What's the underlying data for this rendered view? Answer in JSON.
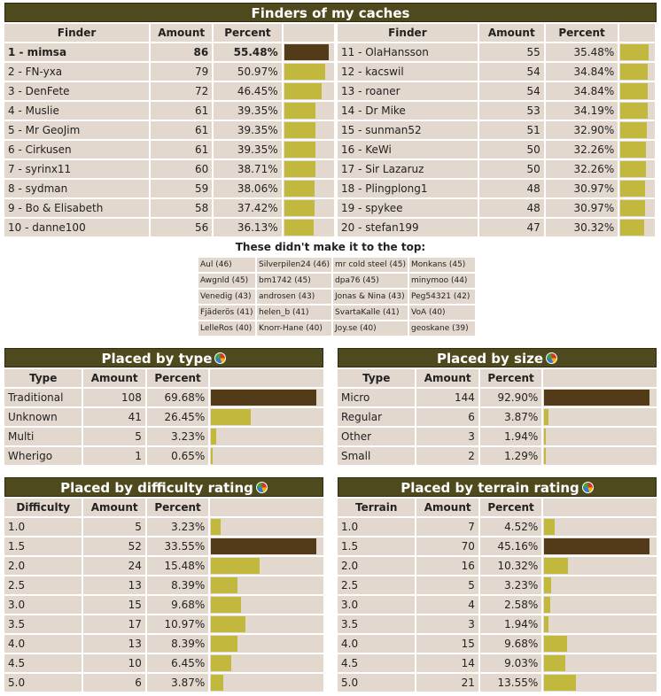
{
  "colors": {
    "header_bg": "#4f4a1d",
    "cell_bg": "#e2d8cd",
    "bar_max": "#533b1a",
    "bar": "#c3b83e"
  },
  "finders": {
    "title": "Finders of my caches",
    "headers": [
      "Finder",
      "Amount",
      "Percent"
    ],
    "left": [
      {
        "name": "1 - mimsa",
        "amount": "86",
        "percent": "55.48%",
        "frac": 1.0
      },
      {
        "name": "2 - FN-yxa",
        "amount": "79",
        "percent": "50.97%",
        "frac": 0.9187
      },
      {
        "name": "3 - DenFete",
        "amount": "72",
        "percent": "46.45%",
        "frac": 0.8372
      },
      {
        "name": "4 - Muslie",
        "amount": "61",
        "percent": "39.35%",
        "frac": 0.7093
      },
      {
        "name": "5 - Mr GeoJim",
        "amount": "61",
        "percent": "39.35%",
        "frac": 0.7093
      },
      {
        "name": "6 - Cirkusen",
        "amount": "61",
        "percent": "39.35%",
        "frac": 0.7093
      },
      {
        "name": "7 - syrinx11",
        "amount": "60",
        "percent": "38.71%",
        "frac": 0.6977
      },
      {
        "name": "8 - sydman",
        "amount": "59",
        "percent": "38.06%",
        "frac": 0.686
      },
      {
        "name": "9 - Bo & Elisabeth",
        "amount": "58",
        "percent": "37.42%",
        "frac": 0.6744
      },
      {
        "name": "10 - danne100",
        "amount": "56",
        "percent": "36.13%",
        "frac": 0.6512
      }
    ],
    "right": [
      {
        "name": "11 - OlaHansson",
        "amount": "55",
        "percent": "35.48%",
        "frac": 0.6395
      },
      {
        "name": "12 - kacswil",
        "amount": "54",
        "percent": "34.84%",
        "frac": 0.6279
      },
      {
        "name": "13 - roaner",
        "amount": "54",
        "percent": "34.84%",
        "frac": 0.6279
      },
      {
        "name": "14 - Dr Mike",
        "amount": "53",
        "percent": "34.19%",
        "frac": 0.6163
      },
      {
        "name": "15 - sunman52",
        "amount": "51",
        "percent": "32.90%",
        "frac": 0.593
      },
      {
        "name": "16 - KeWi",
        "amount": "50",
        "percent": "32.26%",
        "frac": 0.5814
      },
      {
        "name": "17 - Sir Lazaruz",
        "amount": "50",
        "percent": "32.26%",
        "frac": 0.5814
      },
      {
        "name": "18 - Plingplong1",
        "amount": "48",
        "percent": "30.97%",
        "frac": 0.5581
      },
      {
        "name": "19 - spykee",
        "amount": "48",
        "percent": "30.97%",
        "frac": 0.5581
      },
      {
        "name": "20 - stefan199",
        "amount": "47",
        "percent": "30.32%",
        "frac": 0.5465
      }
    ],
    "others_title": "These didn't make it to the top:",
    "others": [
      [
        "Aul (46)",
        "Silverpilen24 (46)",
        "mr cold steel (45)",
        "Monkans (45)"
      ],
      [
        "Awgnld (45)",
        "bm1742 (45)",
        "dpa76 (45)",
        "minymoo (44)"
      ],
      [
        "Venedig (43)",
        "androsen (43)",
        "Jonas & Nina (43)",
        "Peg54321 (42)"
      ],
      [
        "Fjäderös (41)",
        "helen_b (41)",
        "SvartaKalle (41)",
        "VoA (40)"
      ],
      [
        "LelleRos (40)",
        "Knorr-Hane (40)",
        "Joy.se (40)",
        "geoskane (39)"
      ]
    ]
  },
  "placed_by_type": {
    "title": "Placed by type",
    "headers": [
      "Type",
      "Amount",
      "Percent"
    ],
    "rows": [
      {
        "label": "Traditional",
        "amount": "108",
        "percent": "69.68%",
        "frac": 1.0
      },
      {
        "label": "Unknown",
        "amount": "41",
        "percent": "26.45%",
        "frac": 0.3796
      },
      {
        "label": "Multi",
        "amount": "5",
        "percent": "3.23%",
        "frac": 0.0463
      },
      {
        "label": "Wherigo",
        "amount": "1",
        "percent": "0.65%",
        "frac": 0.0093
      }
    ]
  },
  "placed_by_size": {
    "title": "Placed by size",
    "headers": [
      "Type",
      "Amount",
      "Percent"
    ],
    "rows": [
      {
        "label": "Micro",
        "amount": "144",
        "percent": "92.90%",
        "frac": 1.0
      },
      {
        "label": "Regular",
        "amount": "6",
        "percent": "3.87%",
        "frac": 0.0417
      },
      {
        "label": "Other",
        "amount": "3",
        "percent": "1.94%",
        "frac": 0.0208
      },
      {
        "label": "Small",
        "amount": "2",
        "percent": "1.29%",
        "frac": 0.0139
      }
    ]
  },
  "placed_by_difficulty": {
    "title": "Placed by difficulty rating",
    "headers": [
      "Difficulty",
      "Amount",
      "Percent"
    ],
    "rows": [
      {
        "label": "1.0",
        "amount": "5",
        "percent": "3.23%",
        "frac": 0.0962
      },
      {
        "label": "1.5",
        "amount": "52",
        "percent": "33.55%",
        "frac": 1.0
      },
      {
        "label": "2.0",
        "amount": "24",
        "percent": "15.48%",
        "frac": 0.4615
      },
      {
        "label": "2.5",
        "amount": "13",
        "percent": "8.39%",
        "frac": 0.25
      },
      {
        "label": "3.0",
        "amount": "15",
        "percent": "9.68%",
        "frac": 0.2885
      },
      {
        "label": "3.5",
        "amount": "17",
        "percent": "10.97%",
        "frac": 0.3269
      },
      {
        "label": "4.0",
        "amount": "13",
        "percent": "8.39%",
        "frac": 0.25
      },
      {
        "label": "4.5",
        "amount": "10",
        "percent": "6.45%",
        "frac": 0.1923
      },
      {
        "label": "5.0",
        "amount": "6",
        "percent": "3.87%",
        "frac": 0.1154
      }
    ]
  },
  "placed_by_terrain": {
    "title": "Placed by terrain rating",
    "headers": [
      "Terrain",
      "Amount",
      "Percent"
    ],
    "rows": [
      {
        "label": "1.0",
        "amount": "7",
        "percent": "4.52%",
        "frac": 0.1
      },
      {
        "label": "1.5",
        "amount": "70",
        "percent": "45.16%",
        "frac": 1.0
      },
      {
        "label": "2.0",
        "amount": "16",
        "percent": "10.32%",
        "frac": 0.2286
      },
      {
        "label": "2.5",
        "amount": "5",
        "percent": "3.23%",
        "frac": 0.0714
      },
      {
        "label": "3.0",
        "amount": "4",
        "percent": "2.58%",
        "frac": 0.0571
      },
      {
        "label": "3.5",
        "amount": "3",
        "percent": "1.94%",
        "frac": 0.0429
      },
      {
        "label": "4.0",
        "amount": "15",
        "percent": "9.68%",
        "frac": 0.2143
      },
      {
        "label": "4.5",
        "amount": "14",
        "percent": "9.03%",
        "frac": 0.2
      },
      {
        "label": "5.0",
        "amount": "21",
        "percent": "13.55%",
        "frac": 0.3
      }
    ]
  },
  "chart_data": [
    {
      "type": "table",
      "title": "Finders of my caches",
      "categories": [
        "1 - mimsa",
        "2 - FN-yxa",
        "3 - DenFete",
        "4 - Muslie",
        "5 - Mr GeoJim",
        "6 - Cirkusen",
        "7 - syrinx11",
        "8 - sydman",
        "9 - Bo & Elisabeth",
        "10 - danne100",
        "11 - OlaHansson",
        "12 - kacswil",
        "13 - roaner",
        "14 - Dr Mike",
        "15 - sunman52",
        "16 - KeWi",
        "17 - Sir Lazaruz",
        "18 - Plingplong1",
        "19 - spykee",
        "20 - stefan199"
      ],
      "series": [
        {
          "name": "Amount",
          "values": [
            86,
            79,
            72,
            61,
            61,
            61,
            60,
            59,
            58,
            56,
            55,
            54,
            54,
            53,
            51,
            50,
            50,
            48,
            48,
            47
          ]
        },
        {
          "name": "Percent",
          "values": [
            55.48,
            50.97,
            46.45,
            39.35,
            39.35,
            39.35,
            38.71,
            38.06,
            37.42,
            36.13,
            35.48,
            34.84,
            34.84,
            34.19,
            32.9,
            32.26,
            32.26,
            30.97,
            30.97,
            30.32
          ]
        }
      ]
    },
    {
      "type": "bar",
      "title": "Placed by type",
      "categories": [
        "Traditional",
        "Unknown",
        "Multi",
        "Wherigo"
      ],
      "series": [
        {
          "name": "Amount",
          "values": [
            108,
            41,
            5,
            1
          ]
        },
        {
          "name": "Percent",
          "values": [
            69.68,
            26.45,
            3.23,
            0.65
          ]
        }
      ]
    },
    {
      "type": "bar",
      "title": "Placed by size",
      "categories": [
        "Micro",
        "Regular",
        "Other",
        "Small"
      ],
      "series": [
        {
          "name": "Amount",
          "values": [
            144,
            6,
            3,
            2
          ]
        },
        {
          "name": "Percent",
          "values": [
            92.9,
            3.87,
            1.94,
            1.29
          ]
        }
      ]
    },
    {
      "type": "bar",
      "title": "Placed by difficulty rating",
      "categories": [
        "1.0",
        "1.5",
        "2.0",
        "2.5",
        "3.0",
        "3.5",
        "4.0",
        "4.5",
        "5.0"
      ],
      "series": [
        {
          "name": "Amount",
          "values": [
            5,
            52,
            24,
            13,
            15,
            17,
            13,
            10,
            6
          ]
        },
        {
          "name": "Percent",
          "values": [
            3.23,
            33.55,
            15.48,
            8.39,
            9.68,
            10.97,
            8.39,
            6.45,
            3.87
          ]
        }
      ]
    },
    {
      "type": "bar",
      "title": "Placed by terrain rating",
      "categories": [
        "1.0",
        "1.5",
        "2.0",
        "2.5",
        "3.0",
        "3.5",
        "4.0",
        "4.5",
        "5.0"
      ],
      "series": [
        {
          "name": "Amount",
          "values": [
            7,
            70,
            16,
            5,
            4,
            3,
            15,
            14,
            21
          ]
        },
        {
          "name": "Percent",
          "values": [
            4.52,
            45.16,
            10.32,
            3.23,
            2.58,
            1.94,
            9.68,
            9.03,
            13.55
          ]
        }
      ]
    }
  ]
}
